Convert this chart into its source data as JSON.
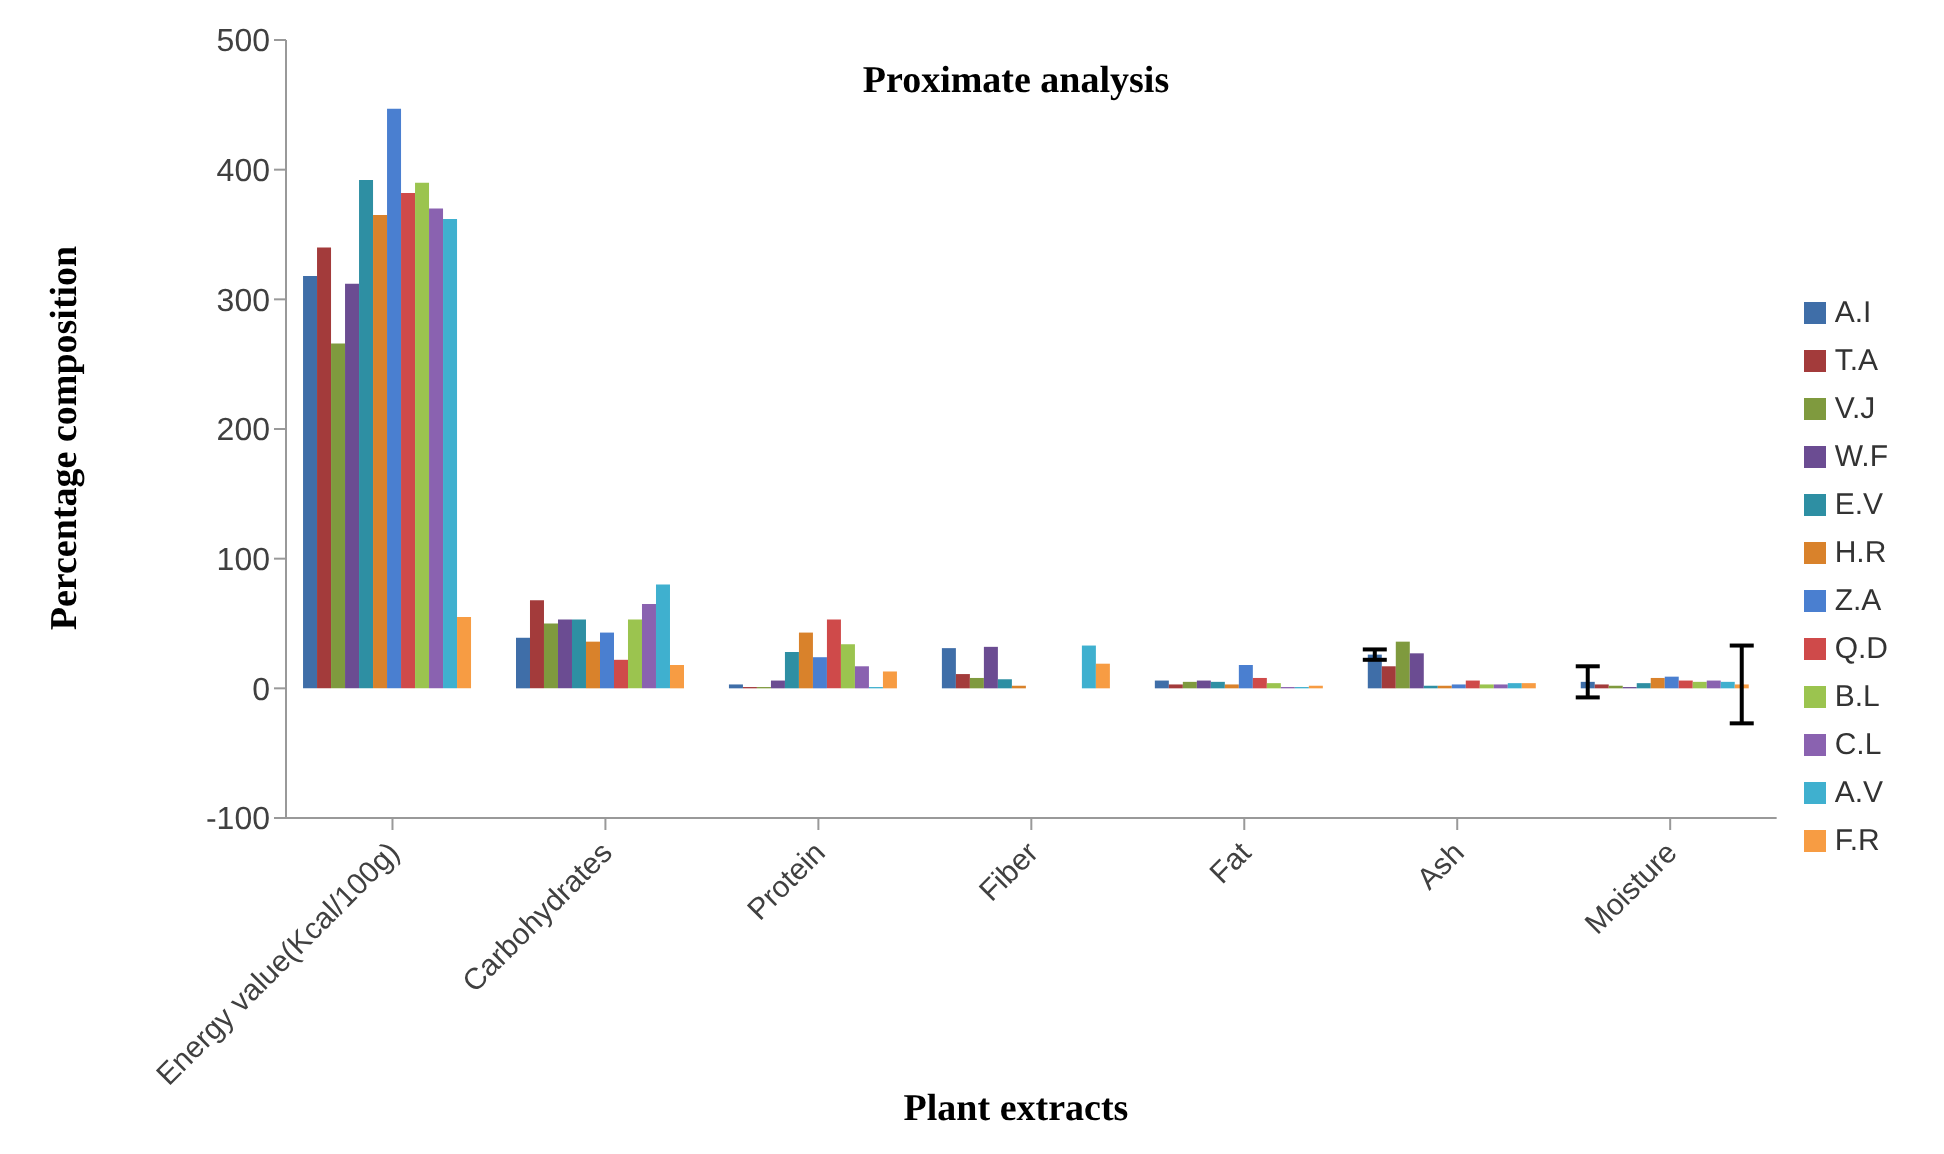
{
  "chart_data": {
    "type": "bar",
    "title": "Proximate analysis",
    "xlabel": "Plant extracts",
    "ylabel": "Percentage composition",
    "categories": [
      "Energy value(Kcal/100g)",
      "Carbohydrates",
      "Protein",
      "Fiber",
      "Fat",
      "Ash",
      "Moisture"
    ],
    "ylim": [
      -100,
      500
    ],
    "yticks": [
      -100,
      0,
      100,
      200,
      300,
      400,
      500
    ],
    "grid": false,
    "legend": "right",
    "series": [
      {
        "name": "A.I",
        "color": "#3f6ea8",
        "values": [
          318,
          39,
          3,
          31,
          6,
          26,
          5
        ],
        "errors": [
          null,
          null,
          null,
          null,
          null,
          4,
          12
        ]
      },
      {
        "name": "T.A",
        "color": "#a33b3b",
        "values": [
          340,
          68,
          1,
          11,
          3,
          17,
          3
        ]
      },
      {
        "name": "V.J",
        "color": "#7f9a3e",
        "values": [
          266,
          50,
          1,
          8,
          5,
          36,
          2
        ]
      },
      {
        "name": "W.F",
        "color": "#6b4c92",
        "values": [
          312,
          53,
          6,
          32,
          6,
          27,
          1
        ]
      },
      {
        "name": "E.V",
        "color": "#2e8fa3",
        "values": [
          392,
          53,
          28,
          7,
          5,
          2,
          4
        ]
      },
      {
        "name": "H.R",
        "color": "#d9822b",
        "values": [
          365,
          36,
          43,
          2,
          3,
          2,
          8
        ]
      },
      {
        "name": "Z.A",
        "color": "#4a7fd0",
        "values": [
          447,
          43,
          24,
          0,
          18,
          3,
          9
        ]
      },
      {
        "name": "Q.D",
        "color": "#cf4a4a",
        "values": [
          382,
          22,
          53,
          0,
          8,
          6,
          6
        ]
      },
      {
        "name": "B.L",
        "color": "#9bc44f",
        "values": [
          390,
          53,
          34,
          0,
          4,
          3,
          5
        ]
      },
      {
        "name": "C.L",
        "color": "#8a62b0",
        "values": [
          370,
          65,
          17,
          0,
          1,
          3,
          6
        ]
      },
      {
        "name": "A.V",
        "color": "#3fb0cf",
        "values": [
          362,
          80,
          1,
          33,
          1,
          4,
          5
        ]
      },
      {
        "name": "F.R",
        "color": "#f79c43",
        "values": [
          55,
          18,
          13,
          19,
          2,
          4,
          3
        ],
        "errors": [
          null,
          null,
          null,
          null,
          null,
          null,
          30
        ]
      }
    ]
  }
}
